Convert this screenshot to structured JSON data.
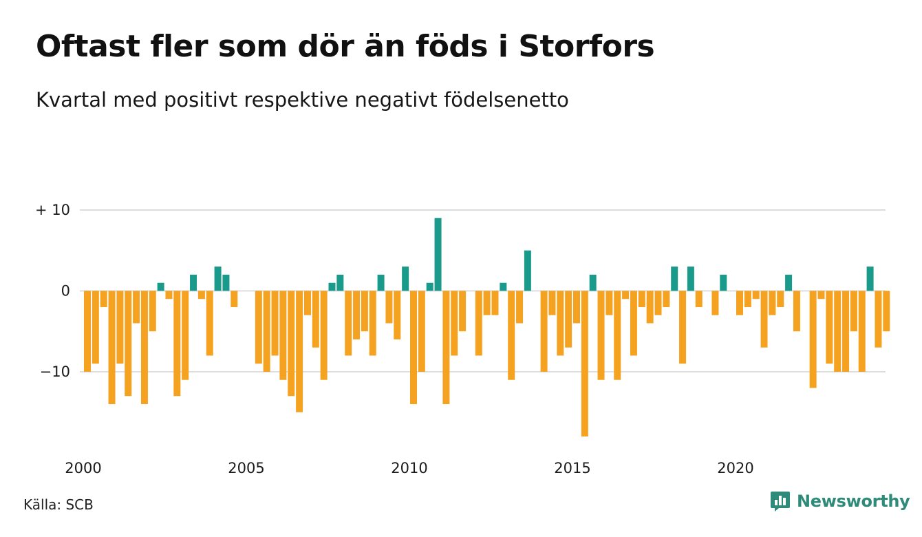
{
  "title": "Oftast fler som dör än föds i Storfors",
  "subtitle": "Kvartal med positivt respektive negativt födelsenetto",
  "source": "Källa: SCB",
  "brand": {
    "name": "Newsworthy",
    "icon": "newsworthy-logo-icon"
  },
  "colors": {
    "positive": "#1a9a8a",
    "negative": "#f6a221",
    "grid": "#dddddd",
    "brand": "#2e8b7a"
  },
  "chart_data": {
    "type": "bar",
    "title": "Oftast fler som dör än föds i Storfors",
    "subtitle": "Kvartal med positivt respektive negativt födelsenetto",
    "x_start": "2000 Q1",
    "x_tick_labels": [
      "2000",
      "2005",
      "2010",
      "2015",
      "2020"
    ],
    "y_tick_labels": [
      "+ 10",
      "0",
      "−10"
    ],
    "y_ticks": [
      10,
      0,
      -10
    ],
    "ylim": [
      -18,
      10
    ],
    "grid": true,
    "legend": "none",
    "series": [
      {
        "values": [
          -10,
          -9,
          -2,
          -14,
          -9,
          -13,
          -4,
          -14,
          -5,
          1,
          -1,
          -13,
          -11,
          2,
          -1,
          -8,
          3,
          2,
          -2,
          0,
          0,
          -9,
          -10,
          -8,
          -11,
          -13,
          -15,
          -3,
          -7,
          -11,
          1,
          2,
          -8,
          -6,
          -5,
          -8,
          2,
          -4,
          -6,
          3,
          -14,
          -10,
          1,
          9,
          -14,
          -8,
          -5,
          0,
          -8,
          -3,
          -3,
          1,
          -11,
          -4,
          5,
          0,
          -10,
          -3,
          -8,
          -7,
          -4,
          -18,
          2,
          -11,
          -3,
          -11,
          -1,
          -8,
          -2,
          -4,
          -3,
          -2,
          3,
          -9,
          3,
          -2,
          0,
          -3,
          2,
          0,
          -3,
          -2,
          -1,
          -7,
          -3,
          -2,
          2,
          -5,
          0,
          -12,
          -1,
          -9,
          -10,
          -10,
          -5,
          -10,
          3,
          -7,
          -5
        ]
      }
    ]
  }
}
